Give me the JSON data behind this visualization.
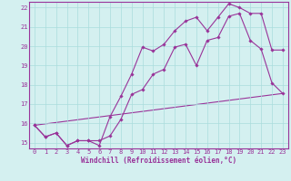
{
  "line1_x": [
    0,
    1,
    2,
    3,
    4,
    5,
    6,
    7,
    8,
    9,
    10,
    11,
    12,
    13,
    14,
    15,
    16,
    17,
    18,
    19,
    20,
    21,
    22,
    23
  ],
  "line1_y": [
    15.9,
    15.3,
    15.5,
    14.85,
    15.1,
    15.1,
    15.1,
    15.35,
    16.2,
    17.5,
    17.75,
    18.55,
    18.8,
    19.95,
    20.1,
    19.0,
    20.3,
    20.45,
    21.55,
    21.7,
    20.3,
    19.85,
    18.1,
    17.55
  ],
  "line2_x": [
    0,
    1,
    2,
    3,
    4,
    5,
    6,
    7,
    8,
    9,
    10,
    11,
    12,
    13,
    14,
    15,
    16,
    17,
    18,
    19,
    20,
    21,
    22,
    23
  ],
  "line2_y": [
    15.9,
    15.3,
    15.5,
    14.85,
    15.1,
    15.1,
    14.85,
    16.35,
    17.4,
    18.55,
    19.95,
    19.75,
    20.1,
    20.8,
    21.3,
    21.5,
    20.8,
    21.5,
    22.2,
    22.0,
    21.7,
    21.7,
    19.8,
    19.8
  ],
  "trend_x": [
    0,
    23
  ],
  "trend_y": [
    15.9,
    17.55
  ],
  "line_color": "#993399",
  "bg_color": "#d4f0f0",
  "grid_color": "#aadddd",
  "xlabel": "Windchill (Refroidissement éolien,°C)",
  "ylabel": "",
  "xlim": [
    -0.5,
    23.5
  ],
  "ylim": [
    14.7,
    22.3
  ],
  "xticks": [
    0,
    1,
    2,
    3,
    4,
    5,
    6,
    7,
    8,
    9,
    10,
    11,
    12,
    13,
    14,
    15,
    16,
    17,
    18,
    19,
    20,
    21,
    22,
    23
  ],
  "yticks": [
    15,
    16,
    17,
    18,
    19,
    20,
    21,
    22
  ],
  "xlabel_fontsize": 5.5,
  "tick_fontsize": 5,
  "line_width": 0.8,
  "marker": "D",
  "marker_size": 1.8
}
